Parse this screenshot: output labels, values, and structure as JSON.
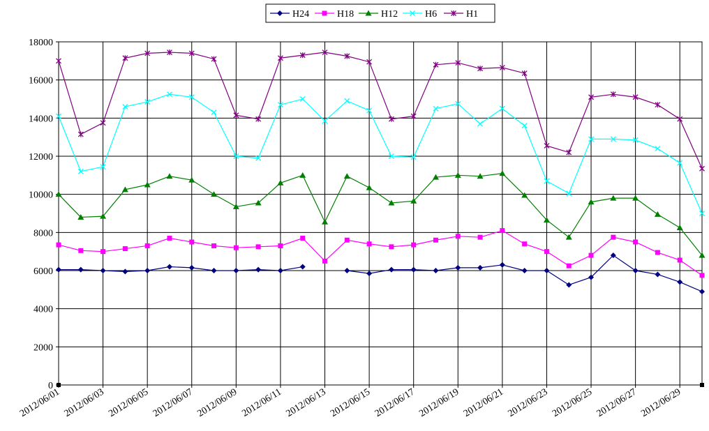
{
  "chart_data": {
    "type": "line",
    "x": [
      "2012/06/01",
      "2012/06/02",
      "2012/06/03",
      "2012/06/04",
      "2012/06/05",
      "2012/06/06",
      "2012/06/07",
      "2012/06/08",
      "2012/06/09",
      "2012/06/10",
      "2012/06/11",
      "2012/06/12",
      "2012/06/13",
      "2012/06/14",
      "2012/06/15",
      "2012/06/16",
      "2012/06/17",
      "2012/06/18",
      "2012/06/19",
      "2012/06/20",
      "2012/06/21",
      "2012/06/22",
      "2012/06/23",
      "2012/06/24",
      "2012/06/25",
      "2012/06/26",
      "2012/06/27",
      "2012/06/28",
      "2012/06/29",
      "2012/06/30"
    ],
    "x_tick_labels": [
      "2012/06/01",
      "2012/06/03",
      "2012/06/05",
      "2012/06/07",
      "2012/06/09",
      "2012/06/11",
      "2012/06/13",
      "2012/06/15",
      "2012/06/17",
      "2012/06/19",
      "2012/06/21",
      "2012/06/23",
      "2012/06/25",
      "2012/06/27",
      "2012/06/29"
    ],
    "y_ticks": [
      "0",
      "2000",
      "4000",
      "6000",
      "8000",
      "10000",
      "12000",
      "14000",
      "16000",
      "18000"
    ],
    "ylim": [
      0,
      18000
    ],
    "grid": true,
    "legend_position": "top-center",
    "series": [
      {
        "name": "H24",
        "color": "#000080",
        "marker": "diamond",
        "values": [
          6050,
          6050,
          6000,
          5950,
          6000,
          6200,
          6150,
          6000,
          6000,
          6050,
          6000,
          6200,
          null,
          6000,
          5850,
          6050,
          6050,
          6000,
          6150,
          6150,
          6300,
          6000,
          6000,
          5250,
          5650,
          6800,
          6000,
          5800,
          5400,
          4900
        ]
      },
      {
        "name": "H18",
        "color": "#FF00FF",
        "marker": "square",
        "values": [
          7350,
          7050,
          7000,
          7150,
          7300,
          7700,
          7500,
          7300,
          7200,
          7250,
          7300,
          7700,
          6500,
          7600,
          7400,
          7250,
          7350,
          7600,
          7800,
          7750,
          8100,
          7400,
          7000,
          6250,
          6800,
          7750,
          7500,
          6950,
          6550,
          5750
        ]
      },
      {
        "name": "H12",
        "color": "#008000",
        "marker": "triangle",
        "values": [
          10000,
          8800,
          8850,
          10250,
          10500,
          10950,
          10750,
          10000,
          9350,
          9550,
          10600,
          11000,
          8550,
          10950,
          10350,
          9550,
          9650,
          10900,
          11000,
          10950,
          11100,
          9950,
          8650,
          7750,
          9600,
          9800,
          9800,
          8950,
          8250,
          6800
        ]
      },
      {
        "name": "H6",
        "color": "#00FFFF",
        "marker": "x",
        "values": [
          14100,
          11200,
          11450,
          14600,
          14850,
          15250,
          15100,
          14300,
          12000,
          11900,
          14700,
          15000,
          13850,
          14900,
          14400,
          12000,
          11950,
          14500,
          14750,
          13700,
          14500,
          13600,
          10700,
          10050,
          12900,
          12900,
          12850,
          12400,
          11650,
          9000
        ]
      },
      {
        "name": "H1",
        "color": "#800080",
        "marker": "star",
        "values": [
          17000,
          13150,
          13750,
          17150,
          17400,
          17450,
          17400,
          17100,
          14150,
          13950,
          17150,
          17300,
          17450,
          17250,
          16950,
          13950,
          14100,
          16800,
          16900,
          16600,
          16650,
          16350,
          12550,
          12200,
          15100,
          15250,
          15100,
          14700,
          13950,
          11350
        ]
      }
    ]
  }
}
